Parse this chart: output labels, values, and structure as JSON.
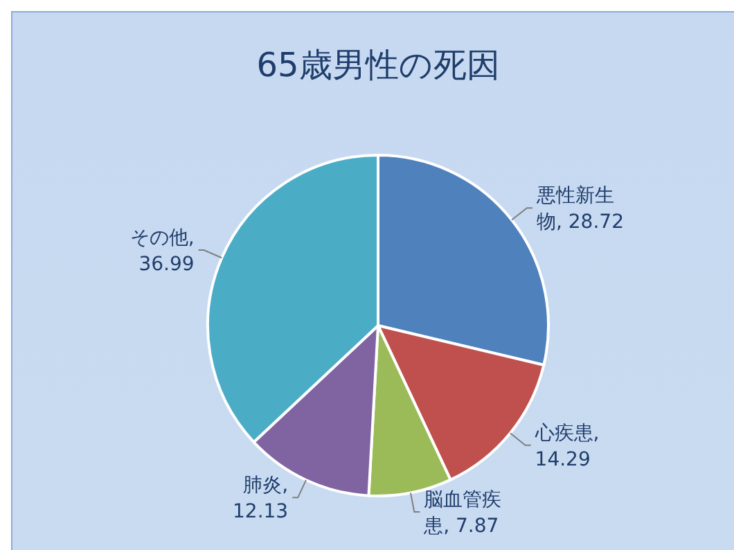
{
  "chart_data": {
    "type": "pie",
    "title": "65歳男性の死因",
    "categories": [
      "悪性新生物",
      "心疾患",
      "脳血管疾患",
      "肺炎",
      "その他"
    ],
    "values": [
      28.72,
      14.29,
      7.87,
      12.13,
      36.99
    ],
    "value_labels": [
      ", 28.72",
      ", 14.29",
      ", 7.87",
      ", 12.13",
      ", 36.99"
    ],
    "colors": [
      "#4f81bd",
      "#c0504d",
      "#9bbb59",
      "#8064a2",
      "#4bacc6"
    ]
  }
}
